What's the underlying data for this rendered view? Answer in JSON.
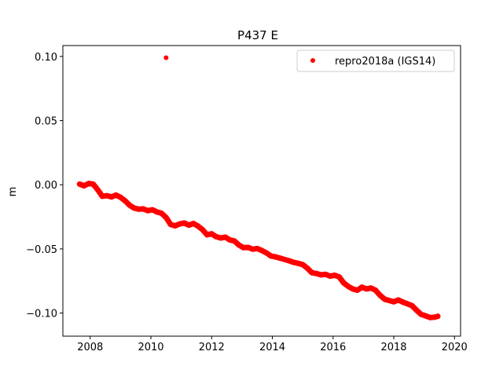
{
  "chart_data": {
    "type": "scatter",
    "title": "P437 E",
    "xlabel": "",
    "ylabel": "m",
    "xlim": [
      2007.1,
      2020.2
    ],
    "ylim": [
      -0.118,
      0.1085
    ],
    "xticks": [
      2008,
      2010,
      2012,
      2014,
      2016,
      2018,
      2020
    ],
    "xtick_labels": [
      "2008",
      "2010",
      "2012",
      "2014",
      "2016",
      "2018",
      "2020"
    ],
    "yticks": [
      0.1,
      0.05,
      0.0,
      -0.05,
      -0.1
    ],
    "ytick_labels": [
      "0.10",
      "0.05",
      "0.00",
      "−0.05",
      "−0.10"
    ],
    "grid": false,
    "legend_position": "upper right",
    "series": [
      {
        "name": "repro2018a (IGS14)",
        "color": "#ff0000",
        "marker": "circle",
        "x": [
          2007.65,
          2007.8,
          2007.95,
          2008.1,
          2008.25,
          2008.4,
          2008.55,
          2008.7,
          2008.85,
          2009.0,
          2009.15,
          2009.3,
          2009.45,
          2009.6,
          2009.75,
          2009.9,
          2010.05,
          2010.2,
          2010.35,
          2010.5,
          2010.65,
          2010.8,
          2010.95,
          2011.1,
          2011.25,
          2011.4,
          2011.55,
          2011.7,
          2011.85,
          2012.0,
          2012.15,
          2012.3,
          2012.45,
          2012.6,
          2012.75,
          2012.9,
          2013.05,
          2013.2,
          2013.35,
          2013.5,
          2013.65,
          2013.8,
          2013.95,
          2014.1,
          2014.25,
          2014.4,
          2014.55,
          2014.7,
          2014.85,
          2015.0,
          2015.15,
          2015.3,
          2015.45,
          2015.6,
          2015.75,
          2015.9,
          2016.05,
          2016.2,
          2016.35,
          2016.5,
          2016.65,
          2016.8,
          2016.95,
          2017.1,
          2017.25,
          2017.4,
          2017.55,
          2017.7,
          2017.85,
          2018.0,
          2018.15,
          2018.3,
          2018.45,
          2018.6,
          2018.75,
          2018.9,
          2019.05,
          2019.2,
          2019.35,
          2019.45
        ],
        "y": [
          0.0005,
          -0.0008,
          0.001,
          0.0005,
          -0.004,
          -0.009,
          -0.0085,
          -0.0095,
          -0.008,
          -0.0098,
          -0.0125,
          -0.016,
          -0.0182,
          -0.019,
          -0.0188,
          -0.0202,
          -0.0195,
          -0.0212,
          -0.0222,
          -0.0255,
          -0.031,
          -0.032,
          -0.0305,
          -0.0298,
          -0.0315,
          -0.0302,
          -0.0322,
          -0.035,
          -0.039,
          -0.0382,
          -0.0405,
          -0.0415,
          -0.0408,
          -0.043,
          -0.0438,
          -0.047,
          -0.049,
          -0.0488,
          -0.0502,
          -0.0497,
          -0.0512,
          -0.053,
          -0.0555,
          -0.0562,
          -0.0572,
          -0.0582,
          -0.0592,
          -0.0605,
          -0.0612,
          -0.0622,
          -0.065,
          -0.0685,
          -0.0692,
          -0.0702,
          -0.0698,
          -0.0712,
          -0.0705,
          -0.0718,
          -0.0765,
          -0.0792,
          -0.0812,
          -0.0822,
          -0.0798,
          -0.0812,
          -0.0805,
          -0.0822,
          -0.0862,
          -0.0892,
          -0.0902,
          -0.0912,
          -0.0898,
          -0.0915,
          -0.0928,
          -0.0942,
          -0.0978,
          -0.101,
          -0.1022,
          -0.1035,
          -0.1032,
          -0.1025
        ],
        "outliers": [
          [
            2010.5,
            0.099
          ]
        ]
      }
    ]
  }
}
